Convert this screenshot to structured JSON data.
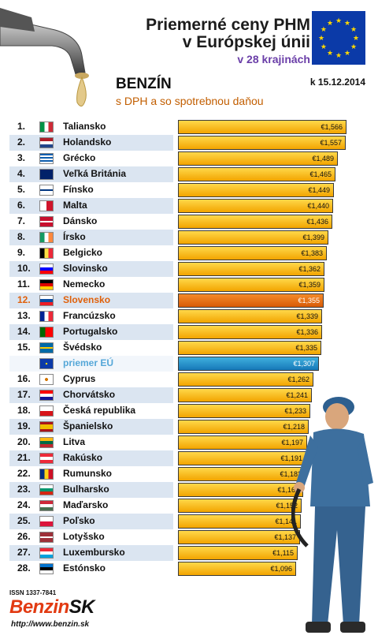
{
  "header": {
    "title_line1": "Priemerné ceny PHM",
    "title_line2": "v Európskej únii",
    "subtitle": "v 28 krajinách",
    "fuel": "BENZÍN",
    "fuel_desc": "s DPH a so spotrebnou daňou",
    "date": "k 15.12.2014"
  },
  "footer": {
    "issn": "ISSN 1337-7841",
    "logo_main": "Benzin",
    "logo_suffix": "SK",
    "url": "http://www.benzin.sk"
  },
  "colors": {
    "bar": "#f5b800",
    "highlight": "#e0600a",
    "eu_average": "#1f8ac9",
    "row_shade": "#dbe5f1"
  },
  "chart_data": {
    "type": "bar",
    "orientation": "horizontal",
    "categories": [
      "Taliansko",
      "Holandsko",
      "Grécko",
      "Veľká Británia",
      "Fínsko",
      "Malta",
      "Dánsko",
      "Írsko",
      "Belgicko",
      "Slovinsko",
      "Nemecko",
      "Slovensko",
      "Francúzsko",
      "Portugalsko",
      "Švédsko",
      "priemer EÚ",
      "Cyprus",
      "Chorvátsko",
      "Česká republika",
      "Španielsko",
      "Litva",
      "Rakúsko",
      "Rumunsko",
      "Bulharsko",
      "Maďarsko",
      "Poľsko",
      "Lotyšsko",
      "Luxembursko",
      "Estónsko"
    ],
    "ranks": [
      "1.",
      "2.",
      "3.",
      "4.",
      "5.",
      "6.",
      "7.",
      "8.",
      "9.",
      "10.",
      "11.",
      "12.",
      "13.",
      "14.",
      "15.",
      "",
      "16.",
      "17.",
      "18.",
      "19.",
      "20.",
      "21.",
      "22.",
      "23.",
      "24.",
      "25.",
      "26.",
      "27.",
      "28."
    ],
    "values": [
      1.566,
      1.557,
      1.489,
      1.465,
      1.449,
      1.44,
      1.436,
      1.399,
      1.383,
      1.362,
      1.359,
      1.355,
      1.339,
      1.336,
      1.335,
      1.307,
      1.262,
      1.241,
      1.233,
      1.218,
      1.197,
      1.191,
      1.182,
      1.167,
      1.152,
      1.141,
      1.137,
      1.115,
      1.096
    ],
    "value_labels": [
      "€1,566",
      "€1,557",
      "€1,489",
      "€1,465",
      "€1,449",
      "€1,440",
      "€1,436",
      "€1,399",
      "€1,383",
      "€1,362",
      "€1,359",
      "€1,355",
      "€1,339",
      "€1,336",
      "€1,335",
      "€1,307",
      "€1,262",
      "€1,241",
      "€1,233",
      "€1,218",
      "€1,197",
      "€1,191",
      "€1,182",
      "€1,167",
      "€1,152",
      "€1,141",
      "€1,137",
      "€1,115",
      "€1,096"
    ],
    "highlight": "Slovensko",
    "average_label": "priemer EÚ",
    "flag_icons": [
      "flag-it-icon",
      "flag-nl-icon",
      "flag-gr-icon",
      "flag-gb-icon",
      "flag-fi-icon",
      "flag-mt-icon",
      "flag-dk-icon",
      "flag-ie-icon",
      "flag-be-icon",
      "flag-si-icon",
      "flag-de-icon",
      "flag-sk-icon",
      "flag-fr-icon",
      "flag-pt-icon",
      "flag-se-icon",
      "flag-eu-icon",
      "flag-cy-icon",
      "flag-hr-icon",
      "flag-cz-icon",
      "flag-es-icon",
      "flag-lt-icon",
      "flag-at-icon",
      "flag-ro-icon",
      "flag-bg-icon",
      "flag-hu-icon",
      "flag-pl-icon",
      "flag-lv-icon",
      "flag-lu-icon",
      "flag-ee-icon"
    ]
  }
}
